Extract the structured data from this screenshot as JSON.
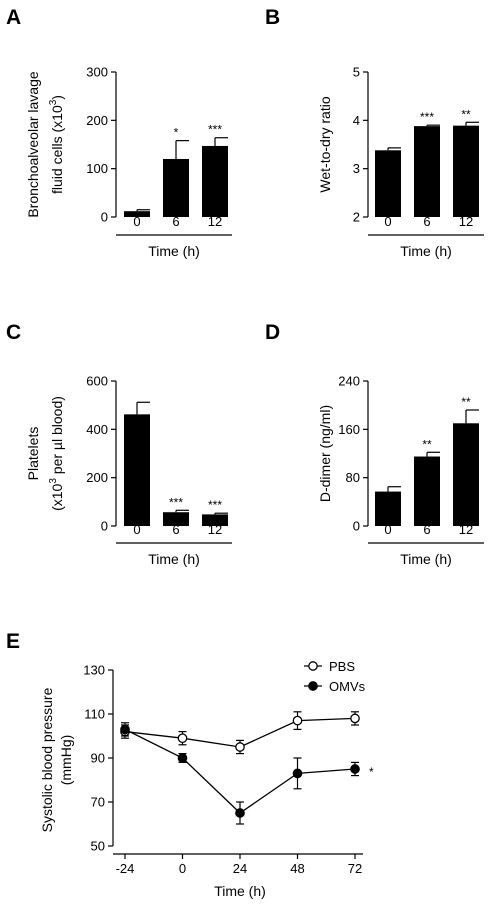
{
  "figure": {
    "panel_labels": [
      "A",
      "B",
      "C",
      "D",
      "E"
    ]
  },
  "chart_data": [
    {
      "panel": "A",
      "type": "bar",
      "categories": [
        "0",
        "6",
        "12"
      ],
      "values": [
        12,
        120,
        147
      ],
      "errors": [
        3,
        38,
        17
      ],
      "significance": [
        "",
        "*",
        "***"
      ],
      "ylabel_lines": [
        "Bronchoalveolar lavage",
        "fluid cells (x10",
        "3",
        ")"
      ],
      "xlabel": "Time (h)",
      "ylim": [
        0,
        300
      ],
      "yticks": [
        "0",
        "100",
        "200",
        "300"
      ],
      "bar_color": "#000000"
    },
    {
      "panel": "B",
      "type": "bar",
      "categories": [
        "0",
        "6",
        "12"
      ],
      "values": [
        3.38,
        3.88,
        3.89
      ],
      "errors": [
        0.05,
        0.02,
        0.07
      ],
      "significance": [
        "",
        "***",
        "**"
      ],
      "ylabel_lines": [
        "Wet-to-dry ratio"
      ],
      "xlabel": "Time (h)",
      "ylim": [
        2,
        5
      ],
      "yticks": [
        "2",
        "3",
        "4",
        "5"
      ],
      "bar_color": "#000000"
    },
    {
      "panel": "C",
      "type": "bar",
      "categories": [
        "0",
        "6",
        "12"
      ],
      "values": [
        462,
        57,
        48
      ],
      "errors": [
        50,
        8,
        5
      ],
      "significance": [
        "",
        "***",
        "***"
      ],
      "ylabel_lines": [
        "Platelets",
        "(x10",
        "3",
        " per µl blood)"
      ],
      "xlabel": "Time (h)",
      "ylim": [
        0,
        600
      ],
      "yticks": [
        "0",
        "200",
        "400",
        "600"
      ],
      "bar_color": "#000000"
    },
    {
      "panel": "D",
      "type": "bar",
      "categories": [
        "0",
        "6",
        "12"
      ],
      "values": [
        57,
        115,
        170
      ],
      "errors": [
        8,
        7,
        22
      ],
      "significance": [
        "",
        "**",
        "**"
      ],
      "ylabel_lines": [
        "D-dimer (ng/ml)"
      ],
      "xlabel": "Time (h)",
      "ylim": [
        0,
        240
      ],
      "yticks": [
        "0",
        "80",
        "160",
        "240"
      ],
      "bar_color": "#000000"
    },
    {
      "panel": "E",
      "type": "line",
      "x": [
        -24,
        0,
        24,
        48,
        72
      ],
      "xticks": [
        "-24",
        "0",
        "24",
        "48",
        "72"
      ],
      "series": [
        {
          "name": "PBS",
          "values": [
            102,
            99,
            95,
            107,
            108
          ],
          "errors": [
            3,
            3,
            3,
            4,
            3
          ],
          "marker": "open-circle"
        },
        {
          "name": "OMVs",
          "values": [
            103,
            90,
            65,
            83,
            85
          ],
          "errors": [
            3,
            2,
            5,
            7,
            3
          ],
          "marker": "filled-circle"
        }
      ],
      "significance": "*",
      "ylabel_lines": [
        "Systolic blood pressure",
        "(mmHg)"
      ],
      "xlabel": "Time (h)",
      "ylim": [
        50,
        130
      ],
      "yticks": [
        "50",
        "70",
        "90",
        "110",
        "130"
      ],
      "legend_position": "top-right"
    }
  ]
}
